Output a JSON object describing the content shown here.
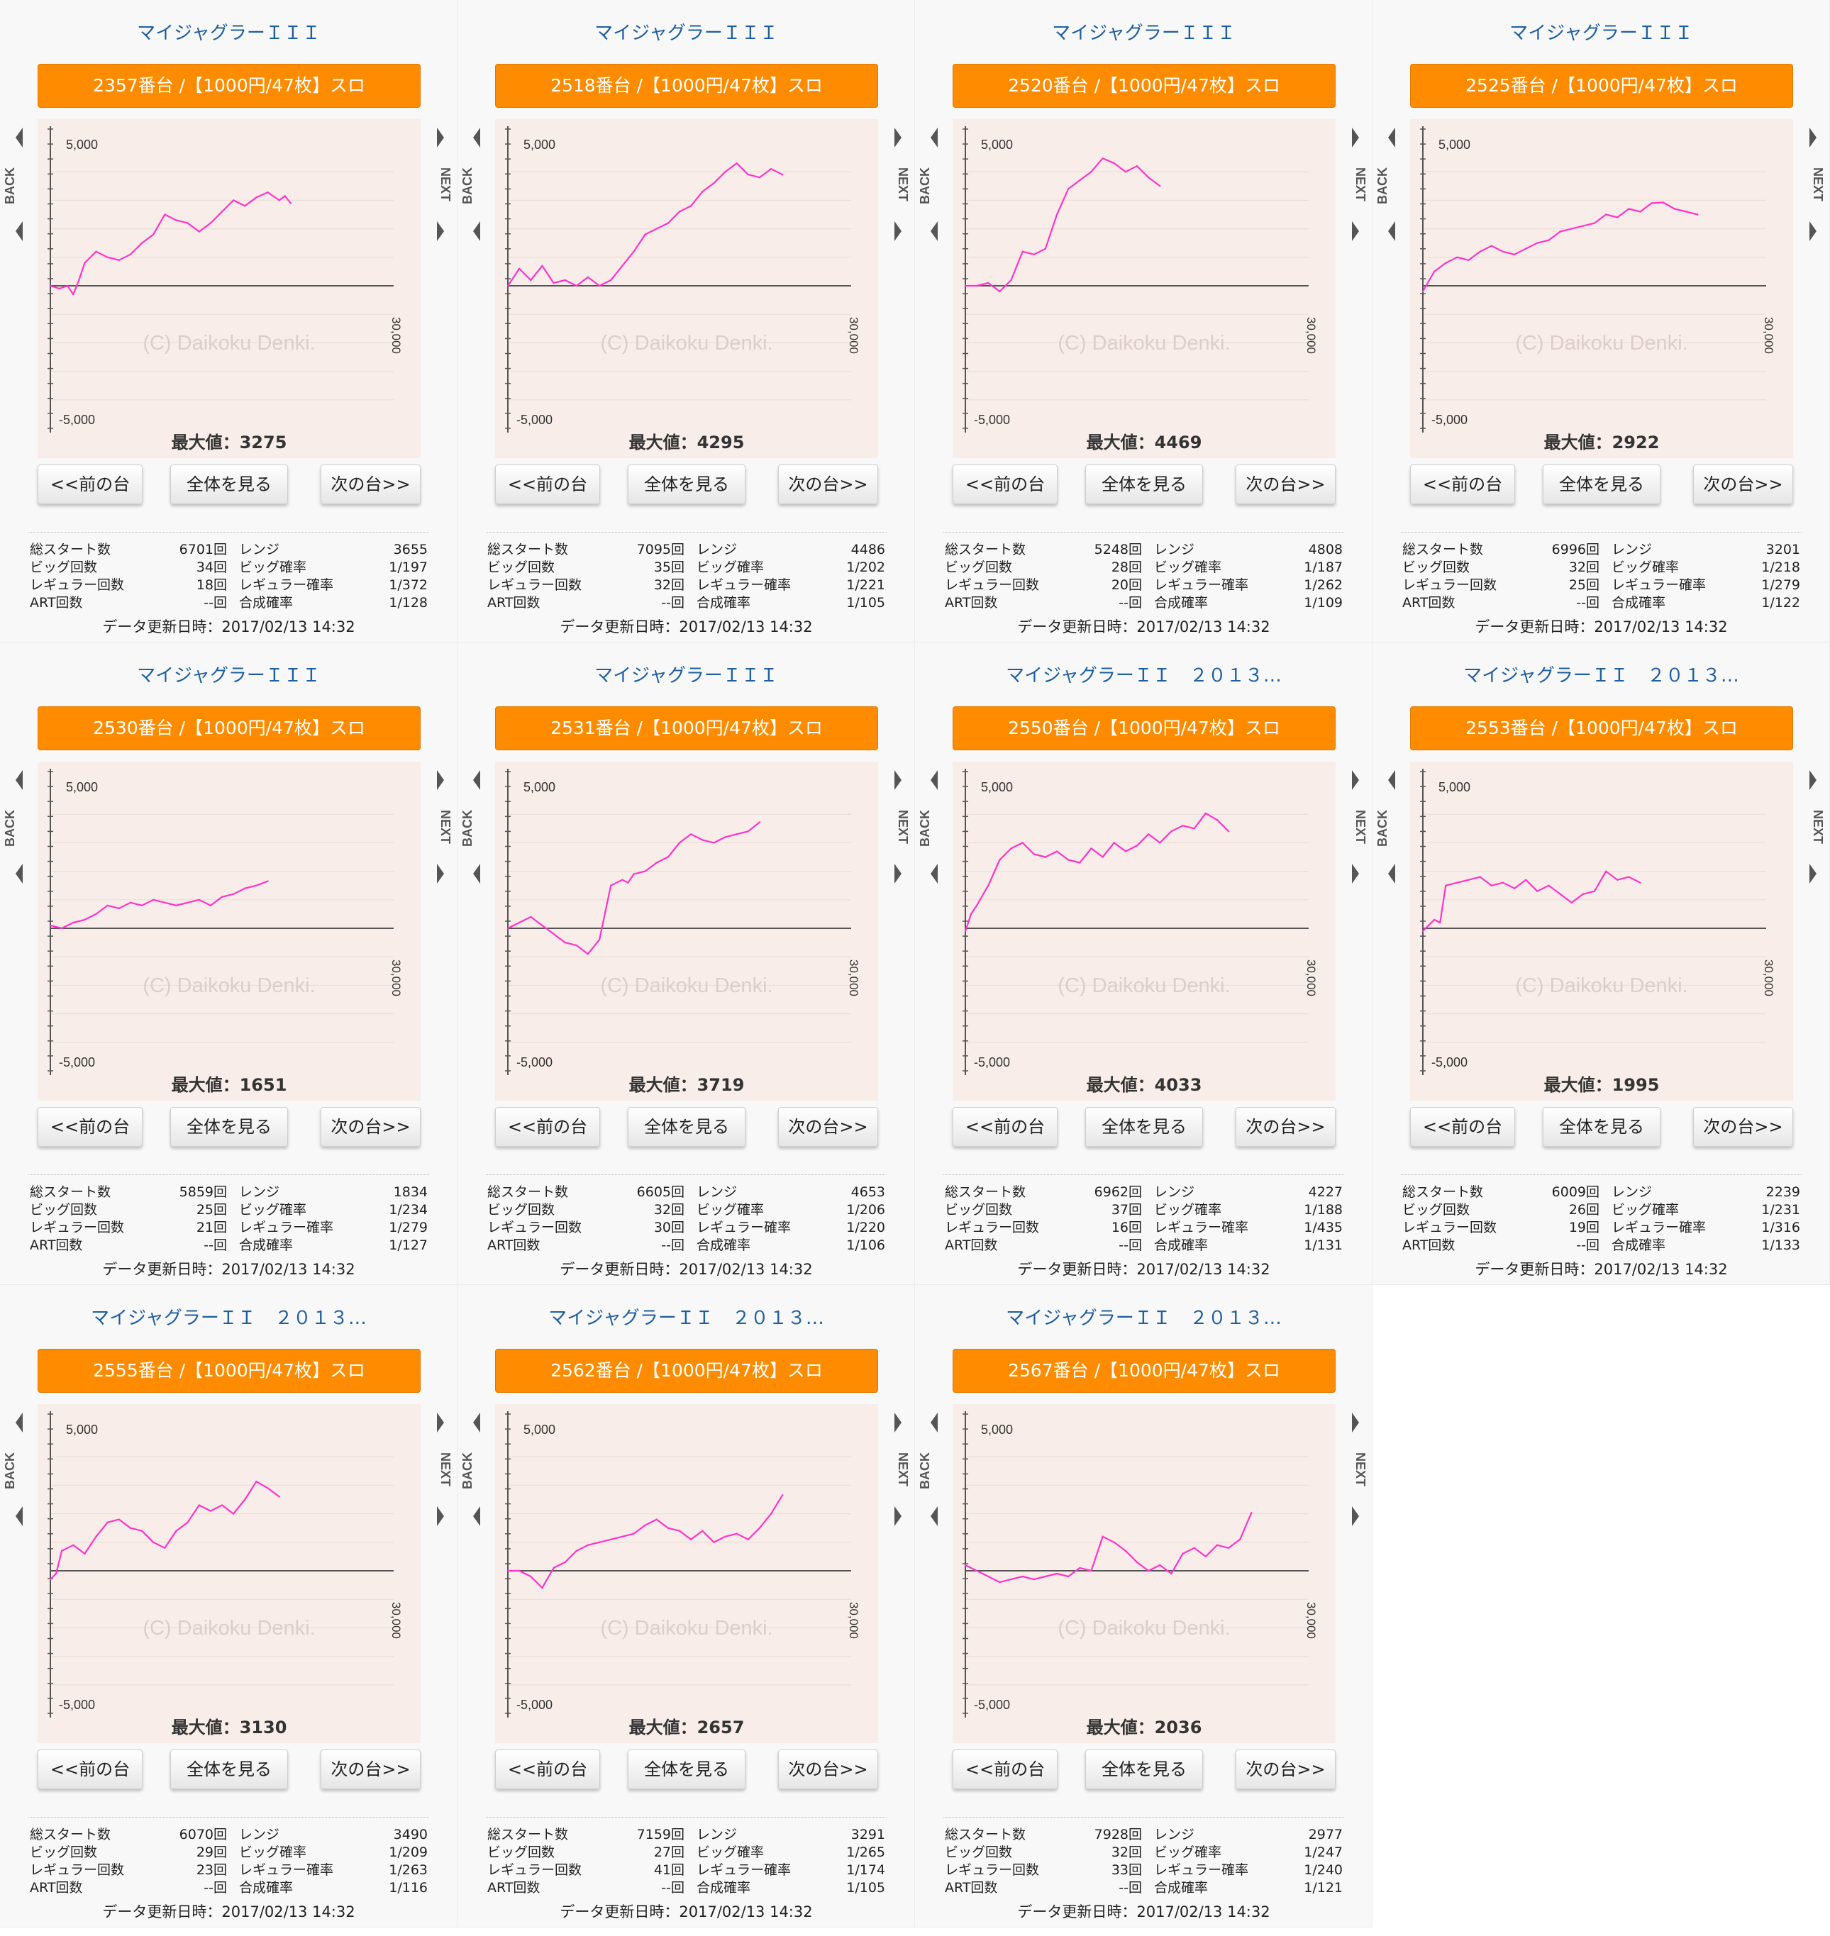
{
  "labels": {
    "back": "BACK",
    "next": "NEXT",
    "y_top": "5,000",
    "y_bottom": "-5,000",
    "x_end": "30,000",
    "watermark": "(C) Daikoku Denki.",
    "max_prefix": "最大値：",
    "prev_button": "<<前の台",
    "all_button": "全体を見る",
    "next_button": "次の台>>",
    "updated_prefix": "データ更新日時：",
    "total_starts": "総スタート数",
    "big_count": "ビッグ回数",
    "reg_count": "レギュラー回数",
    "art_count": "ART回数",
    "range": "レンジ",
    "big_prob": "ビッグ確率",
    "reg_prob": "レギュラー確率",
    "combined_prob": "合成確率"
  },
  "colors": {
    "accent": "#ff8c00",
    "line": "#ff33cc",
    "title": "#1e5fa0",
    "chart_bg": "#f8ede8"
  },
  "units": [
    {
      "machine": "マイジャグラーＩＩＩ",
      "banner": "2357番台 /【1000円/47枚】スロ",
      "max": "3275",
      "total_starts": "6701回",
      "big_count": "34回",
      "reg_count": "18回",
      "art_count": "--回",
      "range": "3655",
      "big_prob": "1/197",
      "reg_prob": "1/372",
      "combined_prob": "1/128",
      "updated": "2017/02/13 14:32",
      "chart_data": {
        "type": "line",
        "ylim": [
          -5000,
          5000
        ],
        "xlim": [
          0,
          30000
        ],
        "x": [
          0,
          800,
          1500,
          2000,
          2500,
          3000,
          4000,
          5000,
          6000,
          7000,
          8000,
          9000,
          10000,
          11000,
          12000,
          13000,
          14000,
          15000,
          16000,
          17000,
          18000,
          19000,
          20000,
          20500,
          21000
        ],
        "y": [
          0,
          -100,
          0,
          -300,
          200,
          800,
          1200,
          1000,
          900,
          1100,
          1500,
          1800,
          2500,
          2300,
          2200,
          1900,
          2200,
          2600,
          3000,
          2800,
          3100,
          3275,
          3000,
          3150,
          2900
        ]
      }
    },
    {
      "machine": "マイジャグラーＩＩＩ",
      "banner": "2518番台 /【1000円/47枚】スロ",
      "max": "4295",
      "total_starts": "7095回",
      "big_count": "35回",
      "reg_count": "32回",
      "art_count": "--回",
      "range": "4486",
      "big_prob": "1/202",
      "reg_prob": "1/221",
      "combined_prob": "1/105",
      "updated": "2017/02/13 14:32",
      "chart_data": {
        "type": "line",
        "ylim": [
          -5000,
          5000
        ],
        "xlim": [
          0,
          30000
        ],
        "x": [
          0,
          1000,
          2000,
          3000,
          4000,
          5000,
          6000,
          7000,
          8000,
          9000,
          10000,
          11000,
          12000,
          13000,
          14000,
          15000,
          16000,
          17000,
          18000,
          19000,
          20000,
          21000,
          22000,
          23000,
          24000
        ],
        "y": [
          0,
          600,
          200,
          700,
          100,
          200,
          0,
          300,
          0,
          200,
          700,
          1200,
          1800,
          2000,
          2200,
          2600,
          2800,
          3300,
          3600,
          4000,
          4295,
          3900,
          3800,
          4100,
          3900
        ]
      }
    },
    {
      "machine": "マイジャグラーＩＩＩ",
      "banner": "2520番台 /【1000円/47枚】スロ",
      "max": "4469",
      "total_starts": "5248回",
      "big_count": "28回",
      "reg_count": "20回",
      "art_count": "--回",
      "range": "4808",
      "big_prob": "1/187",
      "reg_prob": "1/262",
      "combined_prob": "1/109",
      "updated": "2017/02/13 14:32",
      "chart_data": {
        "type": "line",
        "ylim": [
          -5000,
          5000
        ],
        "xlim": [
          0,
          30000
        ],
        "x": [
          0,
          1000,
          2000,
          3000,
          4000,
          5000,
          6000,
          7000,
          8000,
          9000,
          10000,
          11000,
          12000,
          13000,
          14000,
          15000,
          16000,
          17000
        ],
        "y": [
          0,
          0,
          100,
          -200,
          200,
          1200,
          1100,
          1300,
          2500,
          3400,
          3700,
          4000,
          4469,
          4300,
          4000,
          4200,
          3800,
          3500
        ]
      }
    },
    {
      "machine": "マイジャグラーＩＩＩ",
      "banner": "2525番台 /【1000円/47枚】スロ",
      "max": "2922",
      "total_starts": "6996回",
      "big_count": "32回",
      "reg_count": "25回",
      "art_count": "--回",
      "range": "3201",
      "big_prob": "1/218",
      "reg_prob": "1/279",
      "combined_prob": "1/122",
      "updated": "2017/02/13 14:32",
      "chart_data": {
        "type": "line",
        "ylim": [
          -5000,
          5000
        ],
        "xlim": [
          0,
          30000
        ],
        "x": [
          0,
          1000,
          2000,
          3000,
          4000,
          5000,
          6000,
          7000,
          8000,
          9000,
          10000,
          11000,
          12000,
          13000,
          14000,
          15000,
          16000,
          17000,
          18000,
          19000,
          20000,
          21000,
          22000,
          23000,
          24000
        ],
        "y": [
          -200,
          500,
          800,
          1000,
          900,
          1200,
          1400,
          1200,
          1100,
          1300,
          1500,
          1600,
          1900,
          2000,
          2100,
          2200,
          2500,
          2400,
          2700,
          2600,
          2900,
          2922,
          2700,
          2600,
          2500
        ]
      }
    },
    {
      "machine": "マイジャグラーＩＩＩ",
      "banner": "2530番台 /【1000円/47枚】スロ",
      "max": "1651",
      "total_starts": "5859回",
      "big_count": "25回",
      "reg_count": "21回",
      "art_count": "--回",
      "range": "1834",
      "big_prob": "1/234",
      "reg_prob": "1/279",
      "combined_prob": "1/127",
      "updated": "2017/02/13 14:32",
      "chart_data": {
        "type": "line",
        "ylim": [
          -5000,
          5000
        ],
        "xlim": [
          0,
          30000
        ],
        "x": [
          0,
          1000,
          2000,
          3000,
          4000,
          5000,
          6000,
          7000,
          8000,
          9000,
          10000,
          11000,
          12000,
          13000,
          14000,
          15000,
          16000,
          17000,
          18000,
          19000
        ],
        "y": [
          100,
          0,
          200,
          300,
          500,
          800,
          700,
          900,
          800,
          1000,
          900,
          800,
          900,
          1000,
          800,
          1100,
          1200,
          1400,
          1500,
          1651
        ]
      }
    },
    {
      "machine": "マイジャグラーＩＩＩ",
      "banner": "2531番台 /【1000円/47枚】スロ",
      "max": "3719",
      "total_starts": "6605回",
      "big_count": "32回",
      "reg_count": "30回",
      "art_count": "--回",
      "range": "4653",
      "big_prob": "1/206",
      "reg_prob": "1/220",
      "combined_prob": "1/106",
      "updated": "2017/02/13 14:32",
      "chart_data": {
        "type": "line",
        "ylim": [
          -5000,
          5000
        ],
        "xlim": [
          0,
          30000
        ],
        "x": [
          0,
          1000,
          2000,
          3000,
          4000,
          5000,
          6000,
          7000,
          8000,
          9000,
          10000,
          10500,
          11000,
          12000,
          13000,
          14000,
          15000,
          16000,
          17000,
          18000,
          19000,
          20000,
          21000,
          22000
        ],
        "y": [
          0,
          200,
          400,
          100,
          -200,
          -500,
          -600,
          -900,
          -400,
          1500,
          1700,
          1600,
          1900,
          2000,
          2300,
          2500,
          3000,
          3300,
          3100,
          3000,
          3200,
          3300,
          3400,
          3719
        ]
      }
    },
    {
      "machine": "マイジャグラーＩＩ　２０１３…",
      "banner": "2550番台 /【1000円/47枚】スロ",
      "max": "4033",
      "total_starts": "6962回",
      "big_count": "37回",
      "reg_count": "16回",
      "art_count": "--回",
      "range": "4227",
      "big_prob": "1/188",
      "reg_prob": "1/435",
      "combined_prob": "1/131",
      "updated": "2017/02/13 14:32",
      "chart_data": {
        "type": "line",
        "ylim": [
          -5000,
          5000
        ],
        "xlim": [
          0,
          30000
        ],
        "x": [
          0,
          500,
          1000,
          2000,
          3000,
          4000,
          5000,
          6000,
          7000,
          8000,
          9000,
          10000,
          11000,
          12000,
          13000,
          14000,
          15000,
          16000,
          17000,
          18000,
          19000,
          20000,
          21000,
          22000,
          23000
        ],
        "y": [
          -100,
          500,
          800,
          1500,
          2400,
          2800,
          3000,
          2600,
          2500,
          2700,
          2400,
          2300,
          2800,
          2500,
          3000,
          2700,
          2900,
          3300,
          3000,
          3400,
          3600,
          3500,
          4033,
          3800,
          3400
        ]
      }
    },
    {
      "machine": "マイジャグラーＩＩ　２０１３…",
      "banner": "2553番台 /【1000円/47枚】スロ",
      "max": "1995",
      "total_starts": "6009回",
      "big_count": "26回",
      "reg_count": "19回",
      "art_count": "--回",
      "range": "2239",
      "big_prob": "1/231",
      "reg_prob": "1/316",
      "combined_prob": "1/133",
      "updated": "2017/02/13 14:32",
      "chart_data": {
        "type": "line",
        "ylim": [
          -5000,
          5000
        ],
        "xlim": [
          0,
          30000
        ],
        "x": [
          0,
          1000,
          1500,
          2000,
          3000,
          4000,
          5000,
          6000,
          7000,
          8000,
          9000,
          10000,
          11000,
          12000,
          13000,
          14000,
          15000,
          16000,
          17000,
          18000,
          19000
        ],
        "y": [
          -100,
          300,
          200,
          1500,
          1600,
          1700,
          1800,
          1500,
          1600,
          1400,
          1700,
          1300,
          1500,
          1200,
          900,
          1200,
          1300,
          1995,
          1700,
          1800,
          1600
        ]
      }
    },
    {
      "machine": "マイジャグラーＩＩ　２０１３…",
      "banner": "2555番台 /【1000円/47枚】スロ",
      "max": "3130",
      "total_starts": "6070回",
      "big_count": "29回",
      "reg_count": "23回",
      "art_count": "--回",
      "range": "3490",
      "big_prob": "1/209",
      "reg_prob": "1/263",
      "combined_prob": "1/116",
      "updated": "2017/02/13 14:32",
      "chart_data": {
        "type": "line",
        "ylim": [
          -5000,
          5000
        ],
        "xlim": [
          0,
          30000
        ],
        "x": [
          0,
          500,
          1000,
          2000,
          3000,
          4000,
          5000,
          6000,
          7000,
          8000,
          9000,
          10000,
          11000,
          12000,
          13000,
          14000,
          15000,
          16000,
          17000,
          18000,
          19000,
          20000
        ],
        "y": [
          -300,
          -100,
          700,
          900,
          600,
          1200,
          1700,
          1800,
          1500,
          1400,
          1000,
          800,
          1400,
          1700,
          2300,
          2100,
          2300,
          2000,
          2500,
          3130,
          2900,
          2600
        ]
      }
    },
    {
      "machine": "マイジャグラーＩＩ　２０１３…",
      "banner": "2562番台 /【1000円/47枚】スロ",
      "max": "2657",
      "total_starts": "7159回",
      "big_count": "27回",
      "reg_count": "41回",
      "art_count": "--回",
      "range": "3291",
      "big_prob": "1/265",
      "reg_prob": "1/174",
      "combined_prob": "1/105",
      "updated": "2017/02/13 14:32",
      "chart_data": {
        "type": "line",
        "ylim": [
          -5000,
          5000
        ],
        "xlim": [
          0,
          30000
        ],
        "x": [
          0,
          1000,
          2000,
          3000,
          4000,
          5000,
          6000,
          7000,
          8000,
          9000,
          10000,
          11000,
          12000,
          13000,
          14000,
          15000,
          16000,
          17000,
          18000,
          19000,
          20000,
          21000,
          22000,
          23000,
          24000
        ],
        "y": [
          0,
          0,
          -200,
          -600,
          100,
          300,
          700,
          900,
          1000,
          1100,
          1200,
          1300,
          1600,
          1800,
          1500,
          1400,
          1100,
          1400,
          1000,
          1200,
          1300,
          1100,
          1500,
          2000,
          2657
        ]
      }
    },
    {
      "machine": "マイジャグラーＩＩ　２０１３…",
      "banner": "2567番台 /【1000円/47枚】スロ",
      "max": "2036",
      "total_starts": "7928回",
      "big_count": "32回",
      "reg_count": "33回",
      "art_count": "--回",
      "range": "2977",
      "big_prob": "1/247",
      "reg_prob": "1/240",
      "combined_prob": "1/121",
      "updated": "2017/02/13 14:32",
      "chart_data": {
        "type": "line",
        "ylim": [
          -5000,
          5000
        ],
        "xlim": [
          0,
          30000
        ],
        "x": [
          0,
          1000,
          2000,
          3000,
          4000,
          5000,
          6000,
          7000,
          8000,
          9000,
          10000,
          11000,
          12000,
          13000,
          14000,
          15000,
          16000,
          17000,
          18000,
          19000,
          20000,
          21000,
          22000,
          23000,
          24000,
          25000
        ],
        "y": [
          200,
          0,
          -200,
          -400,
          -300,
          -200,
          -300,
          -200,
          -100,
          -200,
          100,
          0,
          1200,
          1000,
          700,
          300,
          0,
          200,
          -100,
          600,
          800,
          500,
          900,
          800,
          1100,
          2036
        ]
      }
    }
  ]
}
